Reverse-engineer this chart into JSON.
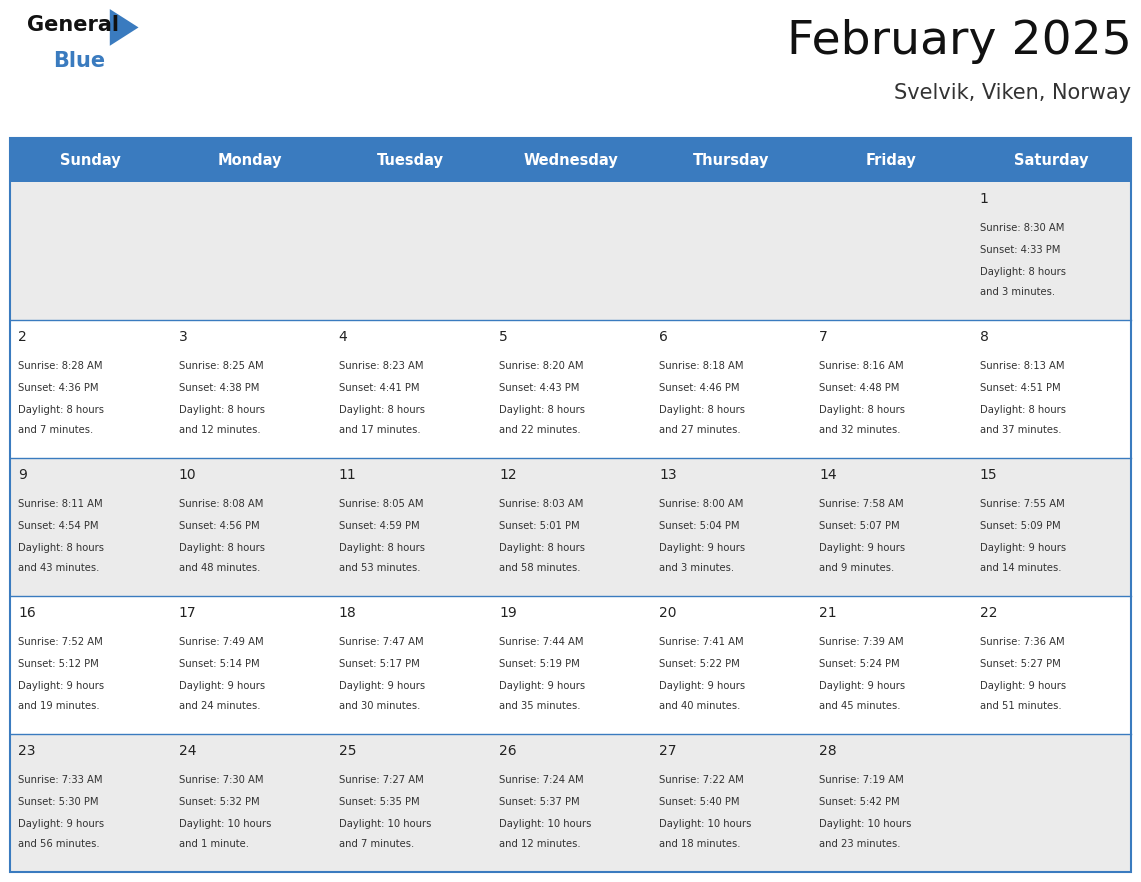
{
  "title": "February 2025",
  "subtitle": "Svelvik, Viken, Norway",
  "days_of_week": [
    "Sunday",
    "Monday",
    "Tuesday",
    "Wednesday",
    "Thursday",
    "Friday",
    "Saturday"
  ],
  "header_bg": "#3a7bbf",
  "header_text": "#ffffff",
  "row_bg_odd": "#ebebeb",
  "row_bg_even": "#ffffff",
  "border_color": "#3a7bbf",
  "day_num_color": "#222222",
  "cell_text_color": "#333333",
  "title_color": "#111111",
  "subtitle_color": "#333333",
  "logo_general_color": "#111111",
  "logo_blue_color": "#3a7bbf",
  "weeks": [
    [
      {
        "day": null,
        "sunrise": null,
        "sunset": null,
        "daylight": null
      },
      {
        "day": null,
        "sunrise": null,
        "sunset": null,
        "daylight": null
      },
      {
        "day": null,
        "sunrise": null,
        "sunset": null,
        "daylight": null
      },
      {
        "day": null,
        "sunrise": null,
        "sunset": null,
        "daylight": null
      },
      {
        "day": null,
        "sunrise": null,
        "sunset": null,
        "daylight": null
      },
      {
        "day": null,
        "sunrise": null,
        "sunset": null,
        "daylight": null
      },
      {
        "day": 1,
        "sunrise": "8:30 AM",
        "sunset": "4:33 PM",
        "daylight": "8 hours and 3 minutes."
      }
    ],
    [
      {
        "day": 2,
        "sunrise": "8:28 AM",
        "sunset": "4:36 PM",
        "daylight": "8 hours and 7 minutes."
      },
      {
        "day": 3,
        "sunrise": "8:25 AM",
        "sunset": "4:38 PM",
        "daylight": "8 hours and 12 minutes."
      },
      {
        "day": 4,
        "sunrise": "8:23 AM",
        "sunset": "4:41 PM",
        "daylight": "8 hours and 17 minutes."
      },
      {
        "day": 5,
        "sunrise": "8:20 AM",
        "sunset": "4:43 PM",
        "daylight": "8 hours and 22 minutes."
      },
      {
        "day": 6,
        "sunrise": "8:18 AM",
        "sunset": "4:46 PM",
        "daylight": "8 hours and 27 minutes."
      },
      {
        "day": 7,
        "sunrise": "8:16 AM",
        "sunset": "4:48 PM",
        "daylight": "8 hours and 32 minutes."
      },
      {
        "day": 8,
        "sunrise": "8:13 AM",
        "sunset": "4:51 PM",
        "daylight": "8 hours and 37 minutes."
      }
    ],
    [
      {
        "day": 9,
        "sunrise": "8:11 AM",
        "sunset": "4:54 PM",
        "daylight": "8 hours and 43 minutes."
      },
      {
        "day": 10,
        "sunrise": "8:08 AM",
        "sunset": "4:56 PM",
        "daylight": "8 hours and 48 minutes."
      },
      {
        "day": 11,
        "sunrise": "8:05 AM",
        "sunset": "4:59 PM",
        "daylight": "8 hours and 53 minutes."
      },
      {
        "day": 12,
        "sunrise": "8:03 AM",
        "sunset": "5:01 PM",
        "daylight": "8 hours and 58 minutes."
      },
      {
        "day": 13,
        "sunrise": "8:00 AM",
        "sunset": "5:04 PM",
        "daylight": "9 hours and 3 minutes."
      },
      {
        "day": 14,
        "sunrise": "7:58 AM",
        "sunset": "5:07 PM",
        "daylight": "9 hours and 9 minutes."
      },
      {
        "day": 15,
        "sunrise": "7:55 AM",
        "sunset": "5:09 PM",
        "daylight": "9 hours and 14 minutes."
      }
    ],
    [
      {
        "day": 16,
        "sunrise": "7:52 AM",
        "sunset": "5:12 PM",
        "daylight": "9 hours and 19 minutes."
      },
      {
        "day": 17,
        "sunrise": "7:49 AM",
        "sunset": "5:14 PM",
        "daylight": "9 hours and 24 minutes."
      },
      {
        "day": 18,
        "sunrise": "7:47 AM",
        "sunset": "5:17 PM",
        "daylight": "9 hours and 30 minutes."
      },
      {
        "day": 19,
        "sunrise": "7:44 AM",
        "sunset": "5:19 PM",
        "daylight": "9 hours and 35 minutes."
      },
      {
        "day": 20,
        "sunrise": "7:41 AM",
        "sunset": "5:22 PM",
        "daylight": "9 hours and 40 minutes."
      },
      {
        "day": 21,
        "sunrise": "7:39 AM",
        "sunset": "5:24 PM",
        "daylight": "9 hours and 45 minutes."
      },
      {
        "day": 22,
        "sunrise": "7:36 AM",
        "sunset": "5:27 PM",
        "daylight": "9 hours and 51 minutes."
      }
    ],
    [
      {
        "day": 23,
        "sunrise": "7:33 AM",
        "sunset": "5:30 PM",
        "daylight": "9 hours and 56 minutes."
      },
      {
        "day": 24,
        "sunrise": "7:30 AM",
        "sunset": "5:32 PM",
        "daylight": "10 hours and 1 minute."
      },
      {
        "day": 25,
        "sunrise": "7:27 AM",
        "sunset": "5:35 PM",
        "daylight": "10 hours and 7 minutes."
      },
      {
        "day": 26,
        "sunrise": "7:24 AM",
        "sunset": "5:37 PM",
        "daylight": "10 hours and 12 minutes."
      },
      {
        "day": 27,
        "sunrise": "7:22 AM",
        "sunset": "5:40 PM",
        "daylight": "10 hours and 18 minutes."
      },
      {
        "day": 28,
        "sunrise": "7:19 AM",
        "sunset": "5:42 PM",
        "daylight": "10 hours and 23 minutes."
      },
      {
        "day": null,
        "sunrise": null,
        "sunset": null,
        "daylight": null
      }
    ]
  ]
}
